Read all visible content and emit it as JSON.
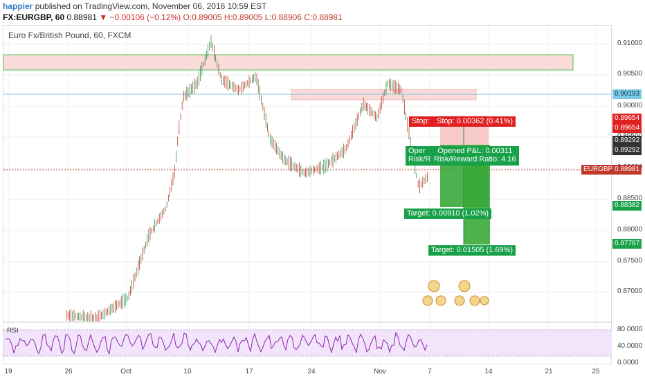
{
  "header": {
    "user": "happier",
    "published": "published on TradingView.com, November 06, 2016 10:59 EST",
    "symbol": "FX:EURGBP, 60",
    "last": "0.88981",
    "change": "▼ −0.00106 (−0.12%)",
    "ohlc": "O:0.89005 H:0.89005 L:0.88906 C:0.88981"
  },
  "chart": {
    "title": "Euro Fx/British Pound, 60, FXCM",
    "rsi_label": "RSI",
    "symbol_tag": "EURGBP"
  },
  "price_axis": [
    "0.91000",
    "0.90500",
    "0.90000",
    "0.89500",
    "0.89000",
    "0.88500",
    "0.88000",
    "0.87500",
    "0.87000"
  ],
  "rsi_axis": [
    "80.0000",
    "40.0000",
    "0.0000"
  ],
  "price_tags": [
    {
      "text": "0.90193",
      "color": "#7ec8e3",
      "fg": "#0b3c5d"
    },
    {
      "text": "0.89654",
      "color": "#e02020",
      "fg": "#ffffff"
    },
    {
      "text": "0.89654",
      "color": "#e02020",
      "fg": "#ffffff"
    },
    {
      "text": "0.89292",
      "color": "#333333",
      "fg": "#ffffff"
    },
    {
      "text": "0.89292",
      "color": "#333333",
      "fg": "#ffffff"
    },
    {
      "text": "0.88981",
      "color": "#c0392b",
      "fg": "#ffffff"
    },
    {
      "text": "0.88382",
      "color": "#19a14a",
      "fg": "#ffffff"
    },
    {
      "text": "0.87787",
      "color": "#19a14a",
      "fg": "#ffffff"
    }
  ],
  "date_axis": [
    "19",
    "26",
    "Oct",
    "10",
    "17",
    "24",
    "Nov",
    "7",
    "14",
    "21",
    "25"
  ],
  "positions": {
    "stop_label": "Stop: 0.00362 (0.41%)",
    "stop_label_prefix": "Stop:",
    "opened_pl": "Opened P&L: 0.00311",
    "risk_reward": "Risk/Reward Ratio: 4.16",
    "target1": "Target: 0.00910 (1.02%)",
    "target2": "Target: 0.01505 (1.69%)",
    "open_partial": "Oper",
    "risk_partial": "Risk/R"
  },
  "colors": {
    "up": "#2a8f4a",
    "down": "#c0392b",
    "rsi_line": "#8e24aa",
    "rsi_band": "#f1e4fb",
    "zone": "#fbdada",
    "zone_border": "#4cc24c",
    "stop_fill": "#f7c9c9",
    "target_fill": "#3aa83a"
  }
}
